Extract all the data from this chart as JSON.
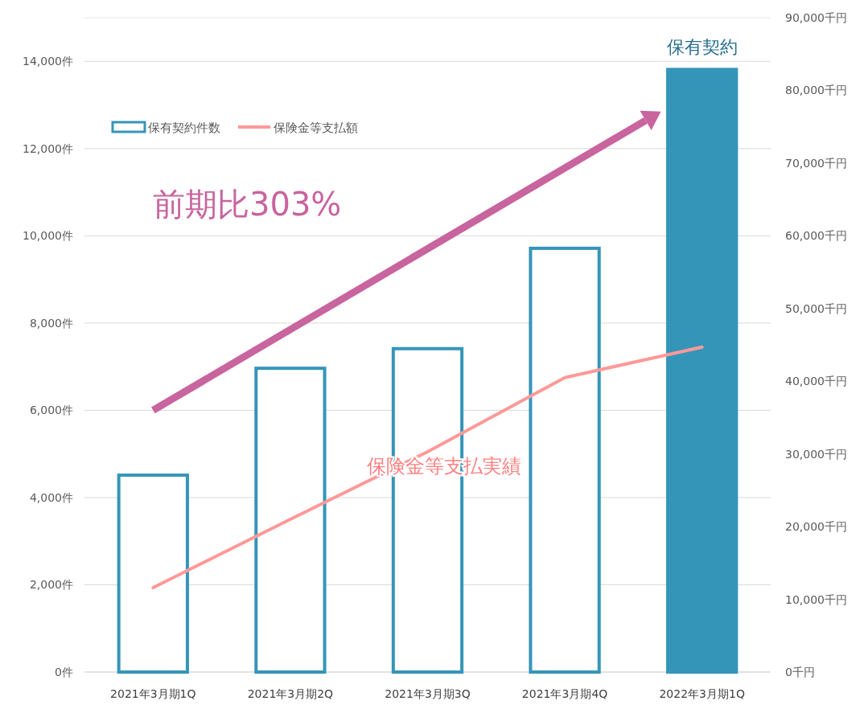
{
  "chart_data": {
    "type": "bar",
    "categories": [
      "2021年3月期1Q",
      "2021年3月期2Q",
      "2021年3月期3Q",
      "2021年3月期4Q",
      "2022年3月期1Q"
    ],
    "series": [
      {
        "name": "保有契約件数",
        "color": "#3595b9",
        "colors": [
          "#ffffff",
          "#ffffff",
          "#ffffff",
          "#ffffff",
          "#3595b9"
        ],
        "values": [
          4550,
          7000,
          7450,
          9750,
          13850
        ]
      },
      {
        "name": "保険金等支払額",
        "type": "line",
        "axis": "y2",
        "color": "#ff9999",
        "values": [
          11600,
          21000,
          30300,
          40500,
          44700
        ]
      }
    ],
    "ylim": [
      0,
      15000
    ],
    "yticks": [
      {
        "value": 0,
        "label": "0件"
      },
      {
        "value": 2000,
        "label": "2,000件"
      },
      {
        "value": 4000,
        "label": "4,000件"
      },
      {
        "value": 6000,
        "label": "6,000件"
      },
      {
        "value": 8000,
        "label": "8,000件"
      },
      {
        "value": 10000,
        "label": "10,000件"
      },
      {
        "value": 12000,
        "label": "12,000件"
      },
      {
        "value": 14000,
        "label": "14,000件"
      }
    ],
    "y2lim": [
      0,
      90000
    ],
    "y2ticks": [
      {
        "value": 0,
        "label": "0千円"
      },
      {
        "value": 10000,
        "label": "10,000千円"
      },
      {
        "value": 20000,
        "label": "20,000千円"
      },
      {
        "value": 30000,
        "label": "30,000千円"
      },
      {
        "value": 40000,
        "label": "40,000千円"
      },
      {
        "value": 50000,
        "label": "50,000千円"
      },
      {
        "value": 60000,
        "label": "60,000千円"
      },
      {
        "value": 70000,
        "label": "70,000千円"
      },
      {
        "value": 80000,
        "label": "80,000千円"
      },
      {
        "value": 90000,
        "label": "90,000千円"
      }
    ],
    "grid": "y",
    "legend": "top left",
    "annotations": [
      "前期比303%",
      "保険金等支払実績",
      "保有契約"
    ]
  }
}
